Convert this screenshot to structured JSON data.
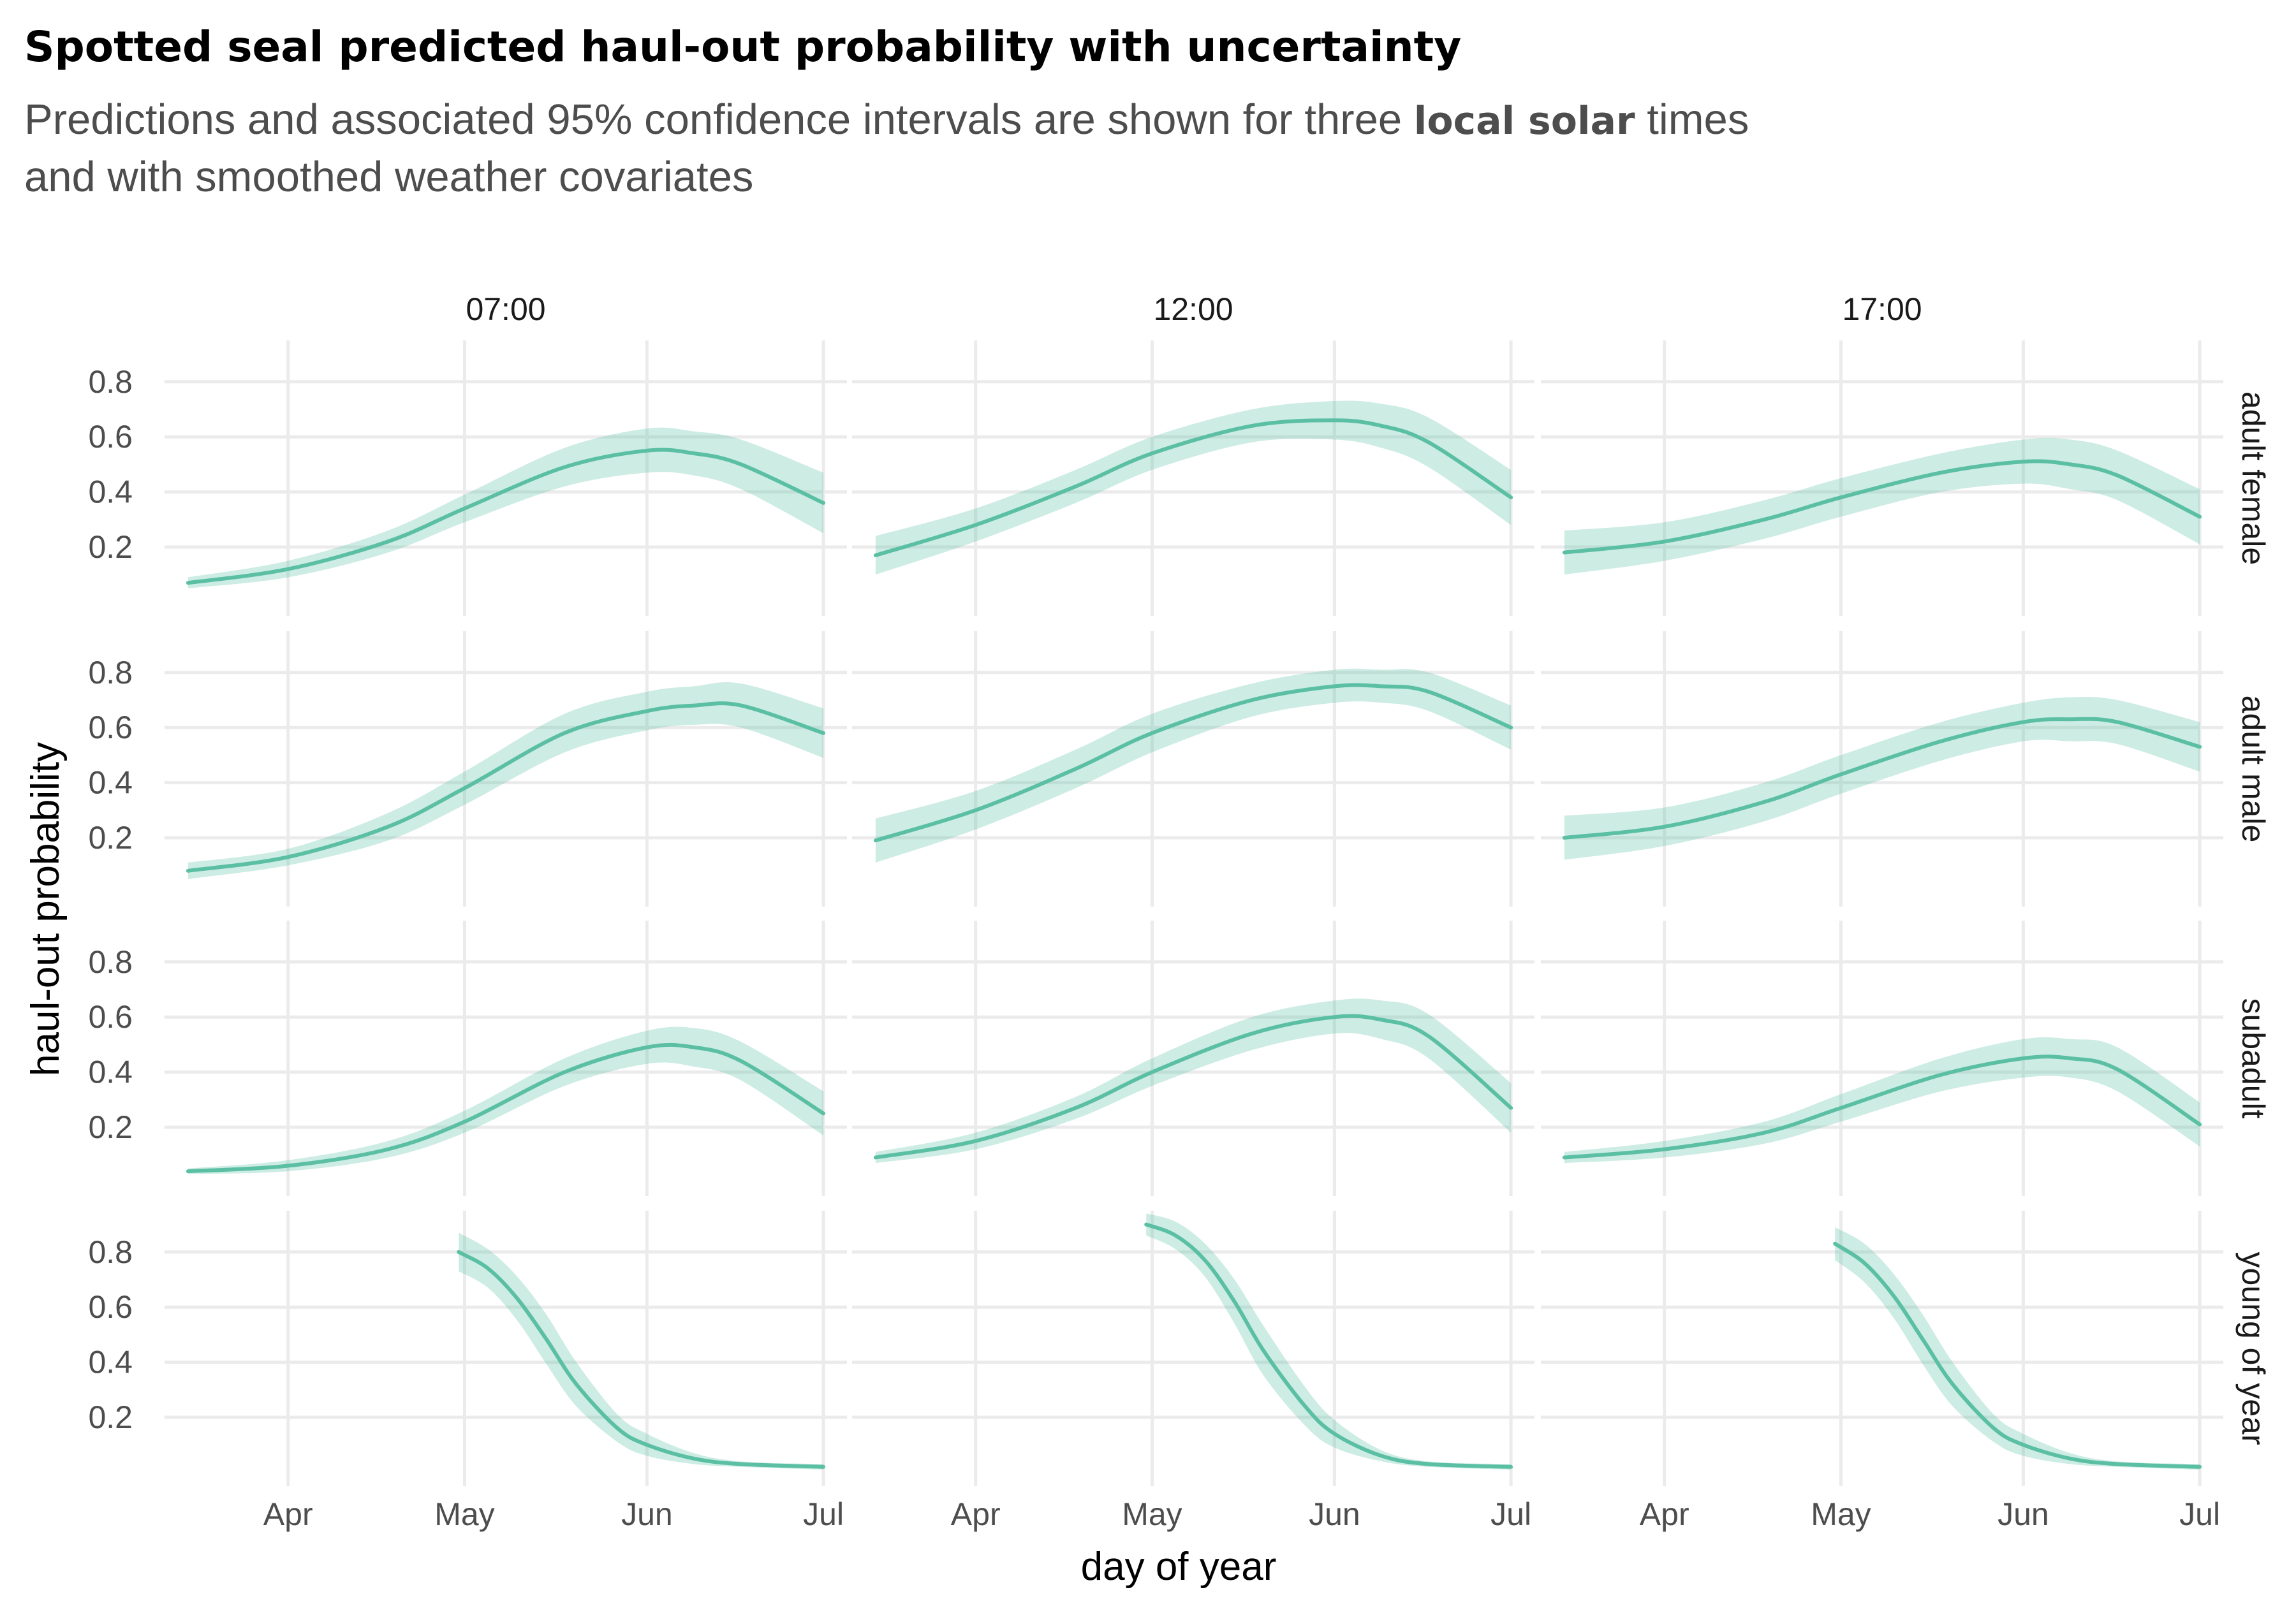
{
  "chart_data": {
    "type": "line",
    "title": "Spotted seal predicted haul-out probability with uncertainty",
    "subtitle": {
      "line1_before": "Predictions and associated 95% confidence intervals are shown for three ",
      "line1_bold": "local solar",
      "line1_after": " times",
      "line2": "and with smoothed weather covariates"
    },
    "xlabel": "day of year",
    "ylabel": "haul-out probability",
    "columns": [
      "07:00",
      "12:00",
      "17:00"
    ],
    "rows": [
      "adult female",
      "adult male",
      "subadult",
      "young of year"
    ],
    "x_ticks": [
      {
        "label": "Apr",
        "day": 91
      },
      {
        "label": "May",
        "day": 121
      },
      {
        "label": "Jun",
        "day": 152
      },
      {
        "label": "Jul",
        "day": 182
      }
    ],
    "xlim": [
      70,
      186
    ],
    "y_ticks": [
      "0.2",
      "0.4",
      "0.6",
      "0.8"
    ],
    "ylim": [
      -0.05,
      0.95
    ],
    "grid": true,
    "colors": {
      "line": "#5bbfa4",
      "band": "#5bbfa4",
      "grid": "#ebebeb"
    },
    "panels": [
      {
        "row": 0,
        "col": 0,
        "x": [
          74,
          91,
          108,
          121,
          138,
          152,
          160,
          168,
          182
        ],
        "y": [
          0.07,
          0.12,
          0.22,
          0.34,
          0.49,
          0.55,
          0.54,
          0.5,
          0.36
        ],
        "ci": [
          0.02,
          0.03,
          0.04,
          0.05,
          0.07,
          0.08,
          0.08,
          0.09,
          0.11
        ]
      },
      {
        "row": 0,
        "col": 1,
        "x": [
          74,
          91,
          108,
          121,
          138,
          152,
          160,
          168,
          182
        ],
        "y": [
          0.17,
          0.28,
          0.42,
          0.54,
          0.64,
          0.66,
          0.64,
          0.58,
          0.38
        ],
        "ci": [
          0.07,
          0.06,
          0.06,
          0.06,
          0.06,
          0.07,
          0.08,
          0.09,
          0.1
        ]
      },
      {
        "row": 0,
        "col": 2,
        "x": [
          74,
          91,
          108,
          121,
          138,
          152,
          160,
          168,
          182
        ],
        "y": [
          0.18,
          0.22,
          0.3,
          0.38,
          0.47,
          0.51,
          0.5,
          0.46,
          0.31
        ],
        "ci": [
          0.08,
          0.07,
          0.07,
          0.07,
          0.07,
          0.08,
          0.09,
          0.09,
          0.1
        ]
      },
      {
        "row": 1,
        "col": 0,
        "x": [
          74,
          91,
          108,
          121,
          138,
          152,
          160,
          168,
          182
        ],
        "y": [
          0.08,
          0.13,
          0.24,
          0.38,
          0.58,
          0.66,
          0.68,
          0.68,
          0.58
        ],
        "ci": [
          0.03,
          0.03,
          0.05,
          0.06,
          0.07,
          0.07,
          0.07,
          0.08,
          0.09
        ]
      },
      {
        "row": 1,
        "col": 1,
        "x": [
          74,
          91,
          108,
          121,
          138,
          152,
          160,
          168,
          182
        ],
        "y": [
          0.19,
          0.3,
          0.45,
          0.58,
          0.7,
          0.75,
          0.75,
          0.73,
          0.6
        ],
        "ci": [
          0.08,
          0.07,
          0.07,
          0.07,
          0.06,
          0.06,
          0.06,
          0.07,
          0.08
        ]
      },
      {
        "row": 1,
        "col": 2,
        "x": [
          74,
          91,
          108,
          121,
          138,
          152,
          160,
          168,
          182
        ],
        "y": [
          0.2,
          0.24,
          0.33,
          0.43,
          0.55,
          0.62,
          0.63,
          0.62,
          0.53
        ],
        "ci": [
          0.08,
          0.07,
          0.07,
          0.07,
          0.07,
          0.07,
          0.08,
          0.08,
          0.09
        ]
      },
      {
        "row": 2,
        "col": 0,
        "x": [
          74,
          91,
          108,
          121,
          138,
          152,
          160,
          168,
          182
        ],
        "y": [
          0.04,
          0.06,
          0.12,
          0.22,
          0.4,
          0.49,
          0.49,
          0.44,
          0.25
        ],
        "ci": [
          0.01,
          0.02,
          0.03,
          0.04,
          0.05,
          0.06,
          0.07,
          0.07,
          0.08
        ]
      },
      {
        "row": 2,
        "col": 1,
        "x": [
          74,
          91,
          108,
          121,
          138,
          152,
          160,
          168,
          182
        ],
        "y": [
          0.09,
          0.15,
          0.27,
          0.4,
          0.54,
          0.6,
          0.59,
          0.53,
          0.27
        ],
        "ci": [
          0.02,
          0.03,
          0.04,
          0.05,
          0.06,
          0.06,
          0.07,
          0.08,
          0.09
        ]
      },
      {
        "row": 2,
        "col": 2,
        "x": [
          74,
          91,
          108,
          121,
          138,
          152,
          160,
          168,
          182
        ],
        "y": [
          0.09,
          0.12,
          0.18,
          0.27,
          0.39,
          0.45,
          0.45,
          0.41,
          0.21
        ],
        "ci": [
          0.02,
          0.03,
          0.04,
          0.05,
          0.06,
          0.07,
          0.07,
          0.08,
          0.08
        ]
      },
      {
        "row": 3,
        "col": 0,
        "x": [
          120,
          125,
          130,
          135,
          140,
          147,
          152,
          160,
          168,
          182
        ],
        "y": [
          0.8,
          0.74,
          0.63,
          0.48,
          0.32,
          0.16,
          0.1,
          0.05,
          0.03,
          0.02
        ],
        "ci": [
          0.07,
          0.07,
          0.08,
          0.09,
          0.08,
          0.05,
          0.04,
          0.02,
          0.01,
          0.01
        ]
      },
      {
        "row": 3,
        "col": 1,
        "x": [
          120,
          125,
          130,
          135,
          140,
          147,
          152,
          160,
          168,
          182
        ],
        "y": [
          0.9,
          0.86,
          0.77,
          0.62,
          0.44,
          0.24,
          0.14,
          0.06,
          0.03,
          0.02
        ],
        "ci": [
          0.04,
          0.05,
          0.06,
          0.08,
          0.09,
          0.07,
          0.05,
          0.02,
          0.01,
          0.01
        ]
      },
      {
        "row": 3,
        "col": 2,
        "x": [
          120,
          125,
          130,
          135,
          140,
          147,
          152,
          160,
          168,
          182
        ],
        "y": [
          0.83,
          0.76,
          0.64,
          0.48,
          0.32,
          0.16,
          0.1,
          0.05,
          0.03,
          0.02
        ],
        "ci": [
          0.06,
          0.07,
          0.08,
          0.09,
          0.08,
          0.05,
          0.04,
          0.02,
          0.01,
          0.01
        ]
      }
    ]
  }
}
